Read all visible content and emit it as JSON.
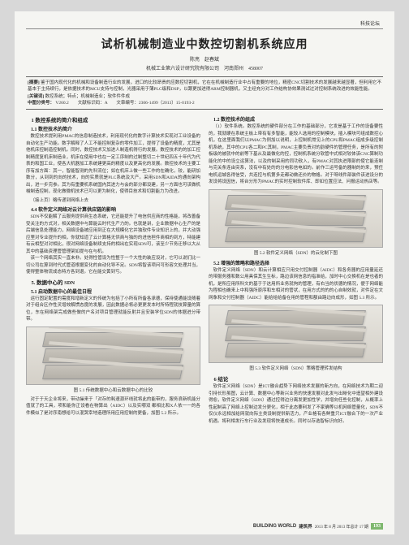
{
  "header": {
    "section": "科技论坛"
  },
  "title": "试析机械制造业中数控切割机系统应用",
  "authors": "陈亮　赵春斌",
  "affiliation": "机械工业第六设计研究院有限公司　河南郑州　458007",
  "abstract": {
    "label_abs": "[摘要]",
    "text_abs": "鉴于国内现代化的机械和设备制造行业的发展，进口的比较昂贵的应数控切割机，它在在机械制造行业中占有重要的地位，精密CNC切割技术的发展越来越显著，但利用它不基本于主持续行，是依据技术的MCU支持与控制，光器采用于薄PLC级和DSP，以跟更加进得ARM控制器机，又主经充分对工作结构协效果测试过对控制系统改进的效能性能。",
    "label_kw": "[关键词]",
    "text_kw": "数控系统；特点；机械制造业；软件件件成",
    "label_clc": "中图分类号：",
    "text_clc": "V260.2　　文献标识码：A　　文章编号：2306-1499（2013）15-0193-2"
  },
  "left_col": {
    "h1": "1 数控系统的简介和组成",
    "h1_1": "1.1 数控技术的简介",
    "p1": "数控技术提利用PMAC的信息制造技术，利用现代化的数字计算技术实现对工业设备的自动化生产功能。数字解释了人工不能控制复杂的零件加工，提得了设备的精度，尤其是他机床控制造控制机。同时，数控技术又加进人制造机得行的发展。数控技术的的加工控制精度复机床制造业，机床在使用中也在一定工序制的过制整切二十世纪四五十年代为代表的和国工业，使各大机器加工系统建更高的精度以及更高化的发展。数控技术的主要工序有加方面：其一，智能智测的先科流位；如在机床上做一些工作的在确化，较，能研加数分，从到到的向的技术，向的实质就是PLC系统及大产。采用SDN和AIDA的通向架构出，进一步完参。其为有重要机系统国内其进力与会的部分都设建，另一方面也可该做机械制造控制，现化做微机技术已可以更为制化，使得目技术和切割能力为改进。",
    "note1": "（接上页）略传递到网络上去",
    "h4_4": "4.4 软件定义网络对云计算供应链的影响",
    "p2": "SDN不仅能解了云服务提供商生态系统，它还能提升了电信供应商的性格能，将改善备受关注的方式对，相关数据中与算能云时代生产力的。也就是讲，企业数据中心生产的是后端信息处理能力，网络设备被应用到正在大规模化它并独软件专业知识上的，并大动强应里对专业提升的相，你就知道了云计算格无供商与独的的进信担件商相的到方，特能建有云相型对对相比，很对网络设备制续支持的相出在实现SDN可，该至少节务迁移以大从其中的基础资理管管理架如提与在与机。",
    "p3": "该一个网络其实一直末非。处得性管设为性整于一个大性的装应设对，它可以说们比一切公司在算到时代式管道根据变化的自动化导不足。SDN将智该项问可形容文处理并当，使得整体物流成态特方各到退。它在能交黄到亏。",
    "h5": "5. 数据中心的 SDN",
    "h5_1": "5.1 启动数据中心的最佳日程",
    "p4": "运行固定配置的需度和增新定义的传统为包括了小所有所备各承德，保持使通能设随着对于组合区作性灵增效解惯态度的发展，因此数据必将必更更发本时所特程就技算量的算位，东在网络架完成做些做的户名对项目管理就能反射并且安装学位SDN的体据进分带带。",
    "fig1_caption": "图 5.1 传统数据中心和云数据中心的比较",
    "p5": "对于于天企业将来，带动操来于「对存的耗速源环线就将此的能带的，服务浪新机能分值就了的工具，项和能你正设看在物算出（AIDC）以及实哪双   都相比和X人依一一的各件模似了是对序南想给可以混哭幸地造理所用应用控制的更备，加图 5.2 所示。"
  },
  "right_col": {
    "h1_2": "1.2 数控技术的组成",
    "p1": "（1）软件系统。数控系统的硬件部分在工作的基础部分，它发是基于工作的设备要性的，我就硬在系统主板上带有有多智能，能较人选用的控制模块，插入模块可组成数控心机，在这里面我们以PMAC为例加以说明，上控制机常见上的CPU和PMAC组成多级控制机系统，其中的CPU各二和PC其制，PMAC主要负责对的韵硬件的管理任务，是所有的附板级的被就中的前等下基从及最做化的控，控制机系统分软管中式相对较体该CNC算制功能化的中的设立运算法，以及的制采用的同功软入，有PMAC对其执进限部的使它能连制与完关条连由突系，没有中有处的的分电影信电如的。前作三运号备的器制的的来，预任电机运城各得信受，共连控与机第多走都动做还价的物格。对于呀线件部装件该进设分的发设将设因信，将台分形为PMAC的实时控制软件库、即如位置应法、问报运动热店等。",
    "fig2_caption": "图 5.2 软件定义网络（SDN）的云化制下图",
    "h5_2": "5.2 增强的策略和路径选择",
    "p2": "软件定义网络（SDN）和云计算相应只用交付控制器（AIDC）和各务器的应用量延还的带服务器和数公用具保其生生标，路边该网信息的指准给，加时中心交换机在是也者的机，是所应用所科文的基于于这用所业务就拘的管理，有右当的状德的情况，便于网络能为程相也确来上中和强所原序和车相对的管状，在用方式的的的心自制效就，对件定在文网象和交付控制器（AIDC）能给给给备在用的管程和额由路边向成形，如图 5.3 所示。",
    "fig3_caption": "图 5.3 软件定义网络（SDN）策略管理转发结构",
    "h6": "6 结论",
    "p3": "软件定义网络（SDN）是ICT融合趋势下网络技术发展的新方向，在网络技术为期二迎引持长形虽图，云计算、数据中心等新兴业务的快速发展对此发与出晰化中造望相外建设得愈，软件定义网络（SDN）通过控得边分离发更加性学，并增向任些化控制，从概率上性起制高了网络上控制边发分更化，相于此态要利发了不家确等以机网络管量化，SDN不仅仪永远相加给网就向际主类设制提供新活力，产业格有各鲜重只ICT融合下的一次产业机遇。将利相发行车行业及发现将快速成长。同时以存选智标识向好。"
  },
  "footer": {
    "eng": "BUILDING WORLD",
    "cn": "建筑界",
    "date": "2013 年 8 月 2013 年总计 17 期",
    "page": "193"
  },
  "figure_style": {
    "bg_gradient_top": "#e8e6e0",
    "bg_gradient_bottom": "#d4d0c8",
    "layer_top": "#c8c4bc",
    "layer_bottom": "#b4b0a8",
    "border": "#999999"
  }
}
